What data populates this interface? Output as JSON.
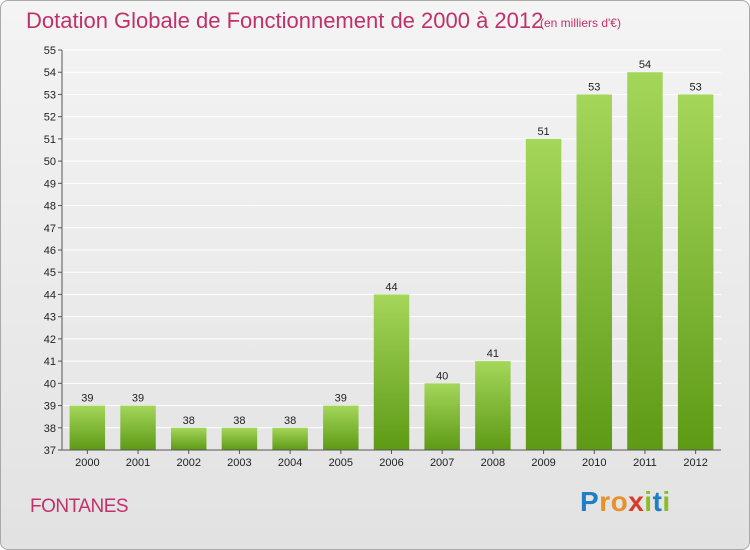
{
  "header": {
    "title": "Dotation Globale de Fonctionnement de 2000 à 2012",
    "subtitle": "(en milliers d'€)"
  },
  "footer": {
    "commune": "FONTANES",
    "logo_letters": [
      "P",
      "r",
      "o",
      "x",
      "i",
      "t",
      "i"
    ],
    "logo_colors": [
      "#1f7fc6",
      "#e8902a",
      "#e8902a",
      "#d93a2a",
      "#8cbc2a",
      "#1f7fc6",
      "#8cbc2a"
    ]
  },
  "colors": {
    "title": "#c0306a",
    "bar_light": "#a4d65a",
    "bar_dark": "#5e9a16",
    "axis": "#555555",
    "grid": "#ffffff"
  },
  "chart_data": {
    "type": "bar",
    "categories": [
      "2000",
      "2001",
      "2002",
      "2003",
      "2004",
      "2005",
      "2006",
      "2007",
      "2008",
      "2009",
      "2010",
      "2011",
      "2012"
    ],
    "values": [
      39,
      39,
      38,
      38,
      38,
      39,
      44,
      40,
      41,
      51,
      53,
      54,
      53
    ],
    "ylim": [
      37,
      55
    ],
    "yticks": [
      37,
      38,
      39,
      40,
      41,
      42,
      43,
      44,
      45,
      46,
      47,
      48,
      49,
      50,
      51,
      52,
      53,
      54,
      55
    ],
    "grid": true,
    "legend": "none"
  }
}
